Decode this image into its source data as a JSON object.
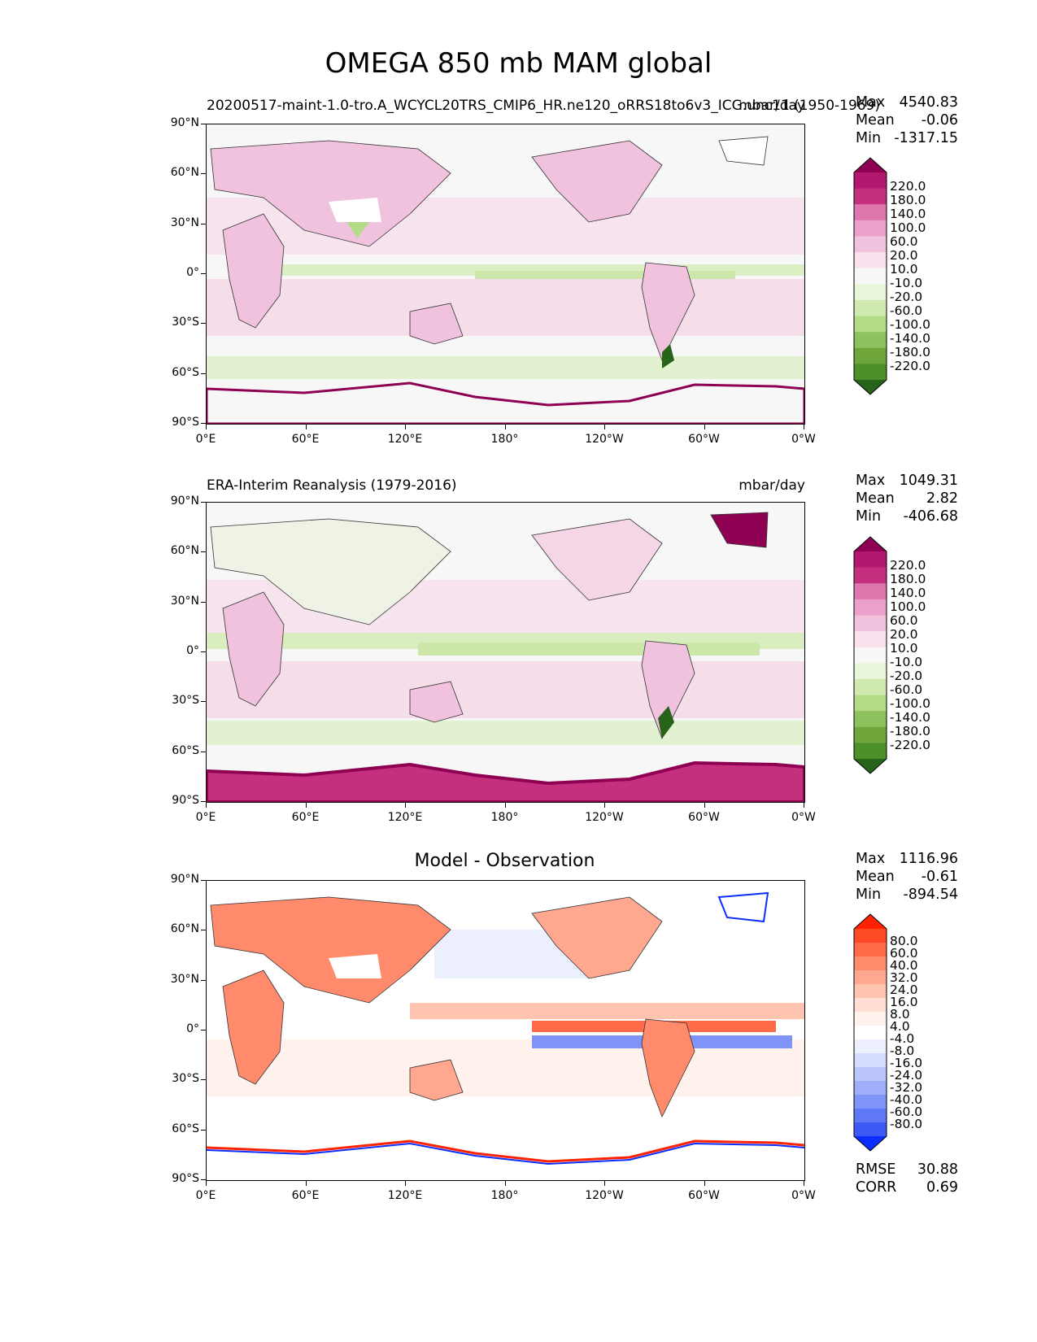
{
  "title": "OMEGA 850 mb MAM global",
  "panels": [
    {
      "id": "model",
      "left_title": "20200517-maint-1.0-tro.A_WCYCL20TRS_CMIP6_HR.ne120_oRRS18to6v3_ICG.unc11 (1950-1969)",
      "right_title": "mbar/day",
      "center_title": "",
      "stats": {
        "max_label": "Max",
        "max": "4540.83",
        "mean_label": "Mean",
        "mean": "-0.06",
        "min_label": "Min",
        "min": "-1317.15"
      }
    },
    {
      "id": "obs",
      "left_title": "ERA-Interim Reanalysis (1979-2016)",
      "right_title": "mbar/day",
      "center_title": "",
      "stats": {
        "max_label": "Max",
        "max": "1049.31",
        "mean_label": "Mean",
        "mean": "2.82",
        "min_label": "Min",
        "min": "-406.68"
      }
    },
    {
      "id": "diff",
      "left_title": "",
      "right_title": "",
      "center_title": "Model - Observation",
      "stats": {
        "max_label": "Max",
        "max": "1116.96",
        "mean_label": "Mean",
        "mean": "-0.61",
        "min_label": "Min",
        "min": "-894.54"
      },
      "extra": {
        "rmse_label": "RMSE",
        "rmse": "30.88",
        "corr_label": "CORR",
        "corr": "0.69"
      }
    }
  ],
  "axes": {
    "y_ticks": [
      "90°N",
      "60°N",
      "30°N",
      "0°",
      "30°S",
      "60°S",
      "90°S"
    ],
    "x_ticks": [
      "0°E",
      "60°E",
      "120°E",
      "180°",
      "120°W",
      "60°W",
      "0°W"
    ]
  },
  "colorbars": {
    "omega": {
      "labels": [
        "220.0",
        "180.0",
        "140.0",
        "100.0",
        "60.0",
        "20.0",
        "10.0",
        "-10.0",
        "-20.0",
        "-60.0",
        "-100.0",
        "-140.0",
        "-180.0",
        "-220.0"
      ],
      "colors": [
        "#8e0152",
        "#b2186d",
        "#c5307e",
        "#de77ae",
        "#eaa0cb",
        "#f1c2de",
        "#fbe0ee",
        "#f7f7f7",
        "#e9f5d8",
        "#d0eab0",
        "#b4dc88",
        "#8fc25e",
        "#6ea63c",
        "#4d8f28",
        "#276419"
      ]
    },
    "diff": {
      "labels": [
        "80.0",
        "60.0",
        "40.0",
        "32.0",
        "24.0",
        "16.0",
        "8.0",
        "4.0",
        "-4.0",
        "-8.0",
        "-16.0",
        "-24.0",
        "-32.0",
        "-40.0",
        "-60.0",
        "-80.0"
      ],
      "colors": [
        "#ff2200",
        "#ff4a26",
        "#ff6a48",
        "#ff8a6c",
        "#ffa88f",
        "#ffc4b0",
        "#ffdfd3",
        "#fff1ec",
        "#ffffff",
        "#eceffe",
        "#d6dcfd",
        "#bac6fc",
        "#9eaef9",
        "#7f94f8",
        "#5f78f7",
        "#3d5af5",
        "#0a2eff"
      ]
    }
  },
  "chart_data": [
    {
      "type": "heatmap",
      "title": "OMEGA 850 mb MAM global",
      "subtitle": "20200517-maint-1.0-tro.A_WCYCL20TRS_CMIP6_HR.ne120_oRRS18to6v3_ICG.unc11 (1950-1969)",
      "units": "mbar/day",
      "xlim": [
        0,
        360
      ],
      "ylim": [
        -90,
        90
      ],
      "stats": {
        "max": 4540.83,
        "mean": -0.06,
        "min": -1317.15
      },
      "levels": [
        -220,
        -180,
        -140,
        -100,
        -60,
        -20,
        -10,
        10,
        20,
        60,
        100,
        140,
        180,
        220
      ]
    },
    {
      "type": "heatmap",
      "subtitle": "ERA-Interim Reanalysis (1979-2016)",
      "units": "mbar/day",
      "xlim": [
        0,
        360
      ],
      "ylim": [
        -90,
        90
      ],
      "stats": {
        "max": 1049.31,
        "mean": 2.82,
        "min": -406.68
      },
      "levels": [
        -220,
        -180,
        -140,
        -100,
        -60,
        -20,
        -10,
        10,
        20,
        60,
        100,
        140,
        180,
        220
      ]
    },
    {
      "type": "heatmap",
      "subtitle": "Model - Observation",
      "xlim": [
        0,
        360
      ],
      "ylim": [
        -90,
        90
      ],
      "stats": {
        "max": 1116.96,
        "mean": -0.61,
        "min": -894.54,
        "rmse": 30.88,
        "corr": 0.69
      },
      "levels": [
        -80,
        -60,
        -40,
        -32,
        -24,
        -16,
        -8,
        -4,
        4,
        8,
        16,
        24,
        32,
        40,
        60,
        80
      ]
    }
  ]
}
